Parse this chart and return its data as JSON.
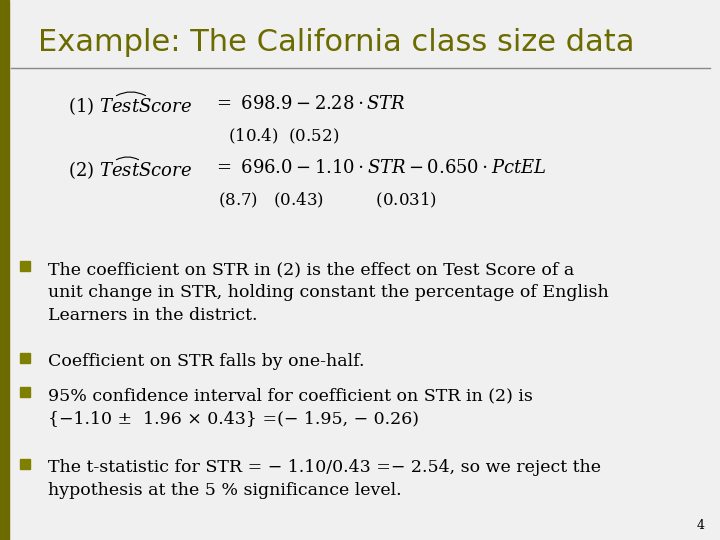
{
  "title": "Example: The California class size data",
  "title_color": "#6b6b00",
  "bg_color": "#f0f0f0",
  "left_bar_color": "#6b6b00",
  "bullet_color": "#555555",
  "bullet_square_color": "#808000",
  "page_number": "4",
  "font_size_title": 22,
  "font_size_body": 12.5,
  "font_size_eq": 13,
  "bullet_points": [
    "The coefficient on STR in (2) is the effect on Test Score of a\nunit change in STR, holding constant the percentage of English\nLearners in the district.",
    "Coefficient on STR falls by one-half.",
    "95% confidence interval for coefficient on STR in (2) is\n{−1.10 ±  1.96 × 0.43} =(− 1.95, − 0.26)",
    "The t-statistic for STR = − 1.10/0.43 =− 2.54, so we reject the\nhypothesis at the 5 % significance level."
  ]
}
